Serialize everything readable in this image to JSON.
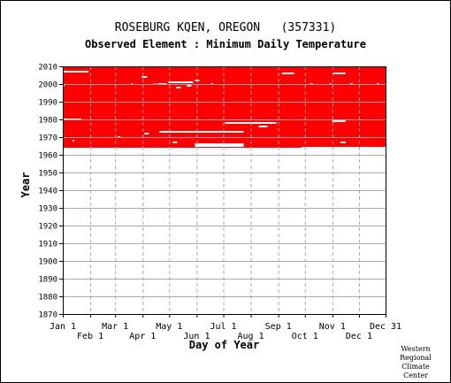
{
  "title": "ROSEBURG KQEN, OREGON   (357331)",
  "subtitle": "Observed Element : Minimum Daily Temperature",
  "credit": [
    "Western",
    "Regional",
    "Climate",
    "Center"
  ],
  "colors": {
    "data": "#ff0000",
    "grid": "#aaaaaa",
    "axis": "#000000",
    "gap": "#ffffff"
  },
  "chart_data": {
    "type": "heatmap",
    "title": "ROSEBURG KQEN, OREGON   (357331)",
    "subtitle": "Observed Element : Minimum Daily Temperature",
    "xlabel": "Day of Year",
    "ylabel": "Year",
    "xlim": [
      1,
      365
    ],
    "ylim": [
      1870,
      2010
    ],
    "yticks": [
      1870,
      1880,
      1890,
      1900,
      1910,
      1920,
      1930,
      1940,
      1950,
      1960,
      1970,
      1980,
      1990,
      2000,
      2010
    ],
    "xticks_upper": [
      {
        "day": 1,
        "label": "Jan 1"
      },
      {
        "day": 60,
        "label": "Mar 1"
      },
      {
        "day": 121,
        "label": "May 1"
      },
      {
        "day": 182,
        "label": "Jul 1"
      },
      {
        "day": 244,
        "label": "Sep 1"
      },
      {
        "day": 305,
        "label": "Nov 1"
      },
      {
        "day": 365,
        "label": "Dec 31"
      }
    ],
    "xticks_lower": [
      {
        "day": 32,
        "label": "Feb 1"
      },
      {
        "day": 91,
        "label": "Apr 1"
      },
      {
        "day": 152,
        "label": "Jun 1"
      },
      {
        "day": 213,
        "label": "Aug 1"
      },
      {
        "day": 274,
        "label": "Oct 1"
      },
      {
        "day": 335,
        "label": "Dec 1"
      }
    ],
    "grid": true,
    "data_coverage": {
      "day_start": 1,
      "day_end": 365,
      "year_start": 1964,
      "year_end": 2010,
      "color": "red"
    },
    "missing": [
      {
        "year": 2007,
        "day_start": 1,
        "day_end": 30
      },
      {
        "year": 2004,
        "day_start": 90,
        "day_end": 96
      },
      {
        "year": 2002,
        "day_start": 150,
        "day_end": 155
      },
      {
        "year": 2001,
        "day_start": 120,
        "day_end": 148
      },
      {
        "year": 2006,
        "day_start": 248,
        "day_end": 262
      },
      {
        "year": 2006,
        "day_start": 306,
        "day_end": 320
      },
      {
        "year": 2000,
        "day_start": 78,
        "day_end": 79
      },
      {
        "year": 2000,
        "day_start": 104,
        "day_end": 105
      },
      {
        "year": 2000,
        "day_start": 108,
        "day_end": 118
      },
      {
        "year": 2000,
        "day_start": 168,
        "day_end": 170
      },
      {
        "year": 2000,
        "day_start": 280,
        "day_end": 283
      },
      {
        "year": 2000,
        "day_start": 302,
        "day_end": 304
      },
      {
        "year": 2000,
        "day_start": 325,
        "day_end": 328
      },
      {
        "year": 2000,
        "day_start": 355,
        "day_end": 358
      },
      {
        "year": 1999,
        "day_start": 1,
        "day_end": 3
      },
      {
        "year": 1999,
        "day_start": 141,
        "day_end": 146
      },
      {
        "year": 1998,
        "day_start": 129,
        "day_end": 134
      },
      {
        "year": 1980,
        "day_start": 1,
        "day_end": 22
      },
      {
        "year": 1979,
        "day_start": 305,
        "day_end": 320
      },
      {
        "year": 1978,
        "day_start": 184,
        "day_end": 242
      },
      {
        "year": 1976,
        "day_start": 222,
        "day_end": 232
      },
      {
        "year": 1973,
        "day_start": 110,
        "day_end": 205
      },
      {
        "year": 1972,
        "day_start": 93,
        "day_end": 98
      },
      {
        "year": 1970,
        "day_start": 63,
        "day_end": 66
      },
      {
        "year": 1968,
        "day_start": 12,
        "day_end": 14
      },
      {
        "year": 1967,
        "day_start": 125,
        "day_end": 130
      },
      {
        "year": 1967,
        "day_start": 314,
        "day_end": 320
      },
      {
        "year": 1966,
        "day_start": 150,
        "day_end": 205
      },
      {
        "year": 1965,
        "day_start": 150,
        "day_end": 205
      },
      {
        "year": 1964,
        "day_start": 270,
        "day_end": 365
      }
    ]
  }
}
